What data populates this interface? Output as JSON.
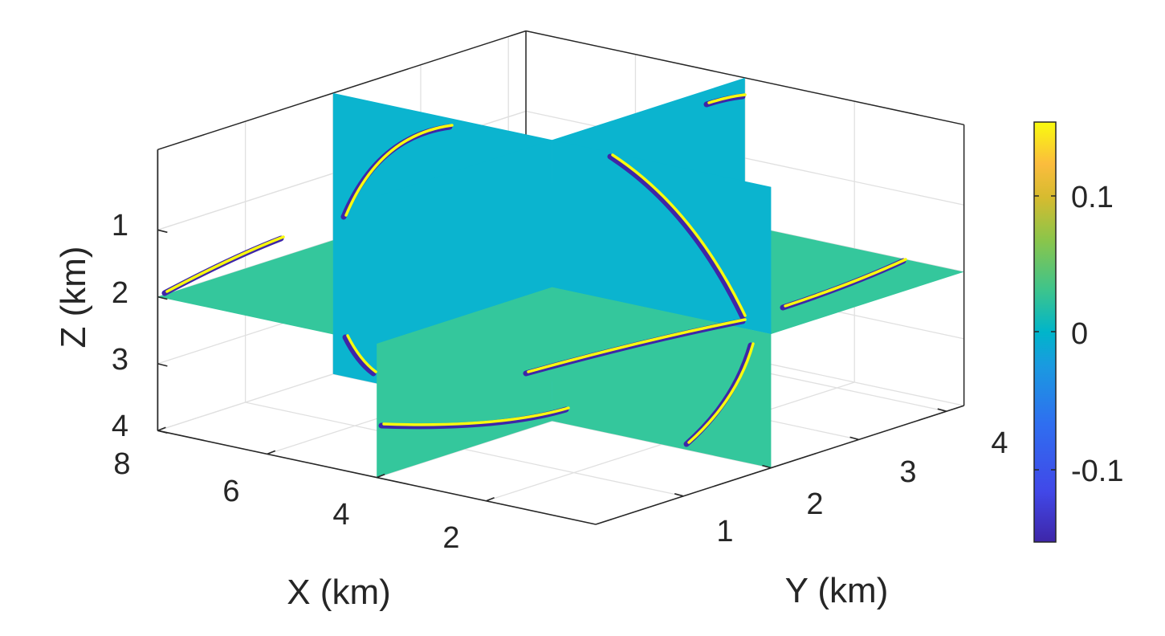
{
  "chart_data": {
    "type": "heatmap",
    "subtype": "3d-slice-volume",
    "title": "",
    "xlabel": "X (km)",
    "ylabel": "Y (km)",
    "zlabel": "Z (km)",
    "x_ticks": [
      "8",
      "6",
      "4",
      "2"
    ],
    "y_ticks": [
      "1",
      "2",
      "3",
      "4"
    ],
    "z_ticks": [
      "1",
      "2",
      "3",
      "4"
    ],
    "xlim": [
      0,
      8
    ],
    "ylim": [
      0,
      4.2
    ],
    "zlim": [
      0,
      4
    ],
    "z_direction": "reversed",
    "grid": true,
    "slices": [
      {
        "plane": "z",
        "value": 2
      },
      {
        "plane": "x",
        "value": 4
      },
      {
        "plane": "y",
        "value": 2
      }
    ],
    "colorbar": {
      "ticks": [
        "0.1",
        "0",
        "-0.1"
      ],
      "range": [
        -0.15,
        0.15
      ],
      "colormap": "parula",
      "colors": [
        "#3e26a8",
        "#2f6ef0",
        "#00b5ca",
        "#3dc48c",
        "#b5c328",
        "#fbbc3d",
        "#f9fb0e"
      ]
    },
    "notes": ""
  }
}
